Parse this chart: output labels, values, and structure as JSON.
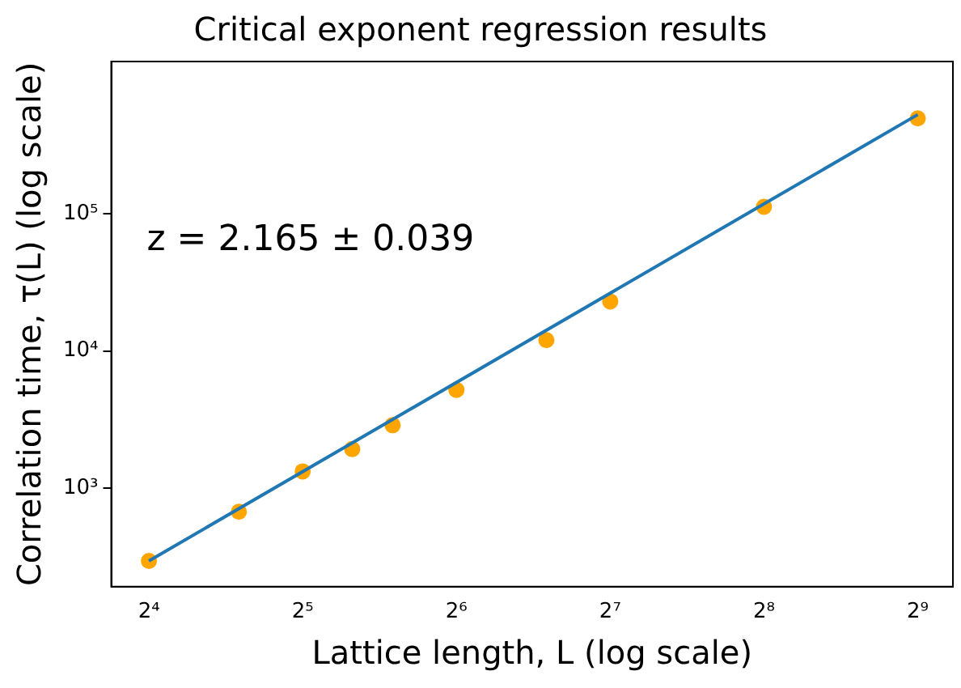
{
  "chart_data": {
    "type": "scatter",
    "title": "Critical exponent regression results",
    "xlabel": "Lattice length, L (log scale)",
    "ylabel": "Correlation time, τ(L) (log scale)",
    "log": "xy",
    "grid": false,
    "legend": false,
    "marker": "circle",
    "xlim": [
      13.5,
      600
    ],
    "ylim": [
      190,
      1300000
    ],
    "xticks": [
      {
        "value": 16,
        "label": "2⁴"
      },
      {
        "value": 32,
        "label": "2⁵"
      },
      {
        "value": 64,
        "label": "2⁶"
      },
      {
        "value": 128,
        "label": "2⁷"
      },
      {
        "value": 256,
        "label": "2⁸"
      },
      {
        "value": 512,
        "label": "2⁹"
      }
    ],
    "yticks": [
      {
        "value": 1000,
        "label": "10³"
      },
      {
        "value": 10000,
        "label": "10⁴"
      },
      {
        "value": 100000,
        "label": "10⁵"
      }
    ],
    "annotations": [
      "z = 2.165 ± 0.039"
    ],
    "series": [
      {
        "type": "line",
        "color": "#1f77b4",
        "x": [
          16,
          512
        ],
        "values": [
          293,
          532000
        ],
        "marker": "none",
        "line_style": "solid"
      },
      {
        "type": "scatter",
        "color": "#ffa500",
        "x": [
          16,
          24,
          32,
          40,
          48,
          64,
          96,
          128,
          256,
          512
        ],
        "values": [
          293,
          670,
          1320,
          1920,
          2870,
          5200,
          12000,
          23000,
          113000,
          500000
        ]
      }
    ]
  }
}
